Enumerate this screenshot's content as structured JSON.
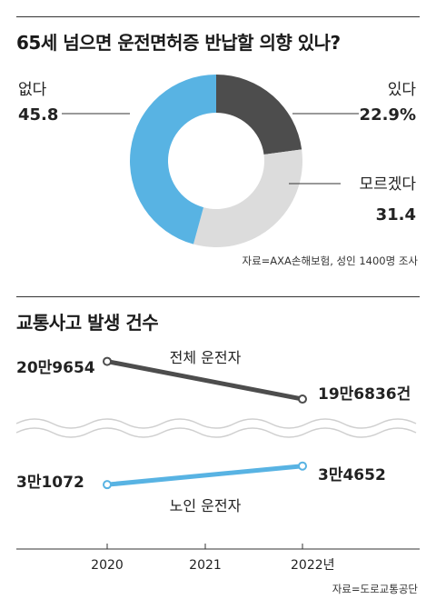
{
  "chart_data": [
    {
      "type": "pie",
      "title": "65세 넘으면 운전면허증 반납할 의향 있나?",
      "slices": [
        {
          "label": "있다",
          "value": 22.9,
          "value_text": "22.9%",
          "color": "#4d4d4d"
        },
        {
          "label": "모르겠다",
          "value": 31.4,
          "value_text": "31.4",
          "color": "#dcdcdc"
        },
        {
          "label": "없다",
          "value": 45.8,
          "value_text": "45.8",
          "color": "#58b3e3"
        }
      ],
      "source": "자료=AXA손해보험, 성인 1400명 조사"
    },
    {
      "type": "line",
      "title": "교통사고 발생 건수",
      "x": [
        "2020",
        "2021",
        "2022년"
      ],
      "series": [
        {
          "name": "전체 운전자",
          "x": [
            "2020",
            "2022년"
          ],
          "values": [
            209654,
            196836
          ],
          "labels": [
            "20만9654",
            "19만6836건"
          ],
          "color": "#4d4d4d"
        },
        {
          "name": "노인 운전자",
          "x": [
            "2020",
            "2022년"
          ],
          "values": [
            31072,
            34652
          ],
          "labels": [
            "3만1072",
            "3만4652"
          ],
          "color": "#58b3e3"
        }
      ],
      "axis_break": true,
      "source": "자료=도로교통공단"
    }
  ]
}
